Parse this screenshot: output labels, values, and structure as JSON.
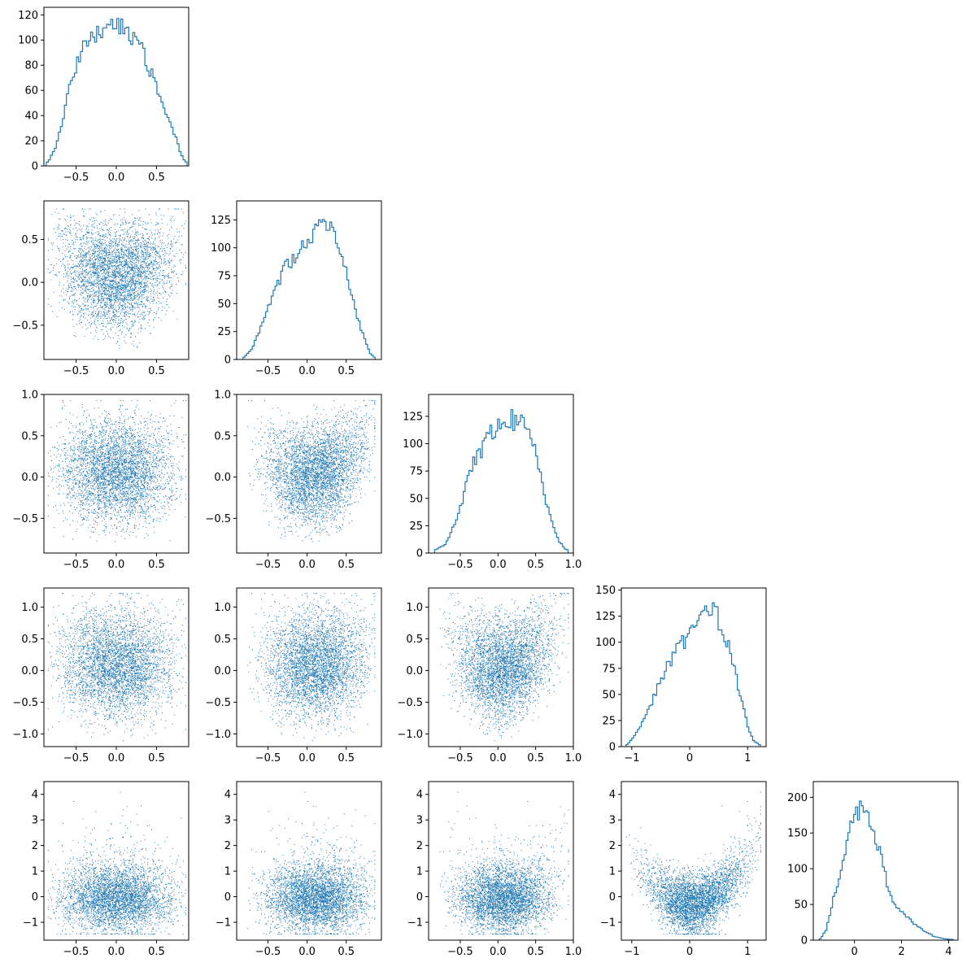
{
  "figure": {
    "type": "corner-plot",
    "variables": 5
  },
  "style": {
    "color": "#1f77b4",
    "axis_color": "#000000",
    "background": "#ffffff"
  },
  "chart_data": [
    {
      "type": "histogram",
      "row": 0,
      "col": 0,
      "xlim": [
        -0.9,
        0.9
      ],
      "ylim": [
        0,
        126
      ],
      "xticks": [
        -0.5,
        0.0,
        0.5
      ],
      "xtick_labels": [
        "−0.5",
        "0.0",
        "0.5"
      ],
      "yticks": [
        0,
        20,
        40,
        60,
        80,
        100,
        120
      ],
      "ytick_labels": [
        "0",
        "20",
        "40",
        "60",
        "80",
        "100",
        "120"
      ],
      "bins": {
        "start": -0.87,
        "end": 0.88,
        "count": 70
      },
      "profile": [
        [
          -0.85,
          3
        ],
        [
          -0.75,
          15
        ],
        [
          -0.65,
          40
        ],
        [
          -0.55,
          72
        ],
        [
          -0.45,
          88
        ],
        [
          -0.35,
          98
        ],
        [
          -0.2,
          108
        ],
        [
          -0.1,
          116
        ],
        [
          0.0,
          112
        ],
        [
          0.1,
          108
        ],
        [
          0.2,
          104
        ],
        [
          0.3,
          98
        ],
        [
          0.4,
          80
        ],
        [
          0.5,
          62
        ],
        [
          0.6,
          42
        ],
        [
          0.7,
          30
        ],
        [
          0.8,
          10
        ],
        [
          0.86,
          3
        ]
      ],
      "title": "",
      "xlabel": "",
      "ylabel": ""
    },
    {
      "type": "scatter",
      "row": 1,
      "col": 0,
      "xlim": [
        -0.9,
        0.9
      ],
      "ylim": [
        -0.9,
        0.95
      ],
      "xticks": [
        -0.5,
        0.0,
        0.5
      ],
      "xtick_labels": [
        "−0.5",
        "0.0",
        "0.5"
      ],
      "yticks": [
        -0.5,
        0.0,
        0.5
      ],
      "ytick_labels": [
        "−0.5",
        "0.0",
        "0.5"
      ],
      "x_var": 0,
      "y_var": 1,
      "points": 4000,
      "title": "",
      "xlabel": "",
      "ylabel": ""
    },
    {
      "type": "histogram",
      "row": 1,
      "col": 1,
      "xlim": [
        -0.9,
        0.95
      ],
      "ylim": [
        0,
        142
      ],
      "xticks": [
        -0.5,
        0.0,
        0.5
      ],
      "xtick_labels": [
        "−0.5",
        "0.0",
        "0.5"
      ],
      "yticks": [
        0,
        25,
        50,
        75,
        100,
        125
      ],
      "ytick_labels": [
        "0",
        "25",
        "50",
        "75",
        "100",
        "125"
      ],
      "bins": {
        "start": -0.82,
        "end": 0.87,
        "count": 70
      },
      "profile": [
        [
          -0.8,
          2
        ],
        [
          -0.7,
          10
        ],
        [
          -0.6,
          28
        ],
        [
          -0.5,
          45
        ],
        [
          -0.4,
          62
        ],
        [
          -0.3,
          80
        ],
        [
          -0.2,
          88
        ],
        [
          -0.1,
          95
        ],
        [
          0.0,
          105
        ],
        [
          0.1,
          112
        ],
        [
          0.2,
          122
        ],
        [
          0.3,
          118
        ],
        [
          0.4,
          105
        ],
        [
          0.5,
          82
        ],
        [
          0.6,
          50
        ],
        [
          0.7,
          25
        ],
        [
          0.8,
          6
        ],
        [
          0.86,
          2
        ]
      ],
      "title": "",
      "xlabel": "",
      "ylabel": ""
    },
    {
      "type": "scatter",
      "row": 2,
      "col": 0,
      "xlim": [
        -0.9,
        0.9
      ],
      "ylim": [
        -0.92,
        1.0
      ],
      "xticks": [
        -0.5,
        0.0,
        0.5
      ],
      "xtick_labels": [
        "−0.5",
        "0.0",
        "0.5"
      ],
      "yticks": [
        -0.5,
        0.0,
        0.5,
        1.0
      ],
      "ytick_labels": [
        "−0.5",
        "0.0",
        "0.5",
        "1.0"
      ],
      "x_var": 0,
      "y_var": 2,
      "points": 4000,
      "title": "",
      "xlabel": "",
      "ylabel": ""
    },
    {
      "type": "scatter",
      "row": 2,
      "col": 1,
      "xlim": [
        -0.9,
        0.95
      ],
      "ylim": [
        -0.92,
        1.0
      ],
      "xticks": [
        -0.5,
        0.0,
        0.5
      ],
      "xtick_labels": [
        "−0.5",
        "0.0",
        "0.5"
      ],
      "yticks": [
        -0.5,
        0.0,
        0.5,
        1.0
      ],
      "ytick_labels": [
        "−0.5",
        "0.0",
        "0.5",
        "1.0"
      ],
      "x_var": 1,
      "y_var": 2,
      "points": 4000,
      "title": "",
      "xlabel": "",
      "ylabel": ""
    },
    {
      "type": "histogram",
      "row": 2,
      "col": 2,
      "xlim": [
        -0.92,
        1.0
      ],
      "ylim": [
        0,
        145
      ],
      "xticks": [
        -0.5,
        0.0,
        0.5,
        1.0
      ],
      "xtick_labels": [
        "−0.5",
        "0.0",
        "0.5",
        "1.0"
      ],
      "yticks": [
        0,
        25,
        50,
        75,
        100,
        125
      ],
      "ytick_labels": [
        "0",
        "25",
        "50",
        "75",
        "100",
        "125"
      ],
      "bins": {
        "start": -0.84,
        "end": 0.93,
        "count": 70
      },
      "profile": [
        [
          -0.82,
          3
        ],
        [
          -0.7,
          8
        ],
        [
          -0.6,
          22
        ],
        [
          -0.5,
          42
        ],
        [
          -0.4,
          68
        ],
        [
          -0.3,
          85
        ],
        [
          -0.2,
          95
        ],
        [
          -0.1,
          108
        ],
        [
          0.0,
          118
        ],
        [
          0.1,
          125
        ],
        [
          0.2,
          122
        ],
        [
          0.3,
          118
        ],
        [
          0.4,
          112
        ],
        [
          0.5,
          90
        ],
        [
          0.6,
          58
        ],
        [
          0.7,
          30
        ],
        [
          0.8,
          12
        ],
        [
          0.9,
          3
        ]
      ],
      "title": "",
      "xlabel": "",
      "ylabel": ""
    },
    {
      "type": "scatter",
      "row": 3,
      "col": 0,
      "xlim": [
        -0.9,
        0.9
      ],
      "ylim": [
        -1.2,
        1.3
      ],
      "xticks": [
        -0.5,
        0.0,
        0.5
      ],
      "xtick_labels": [
        "−0.5",
        "0.0",
        "0.5"
      ],
      "yticks": [
        -1.0,
        -0.5,
        0.0,
        0.5,
        1.0
      ],
      "ytick_labels": [
        "−1.0",
        "−0.5",
        "0.0",
        "0.5",
        "1.0"
      ],
      "x_var": 0,
      "y_var": 3,
      "points": 4000,
      "title": "",
      "xlabel": "",
      "ylabel": ""
    },
    {
      "type": "scatter",
      "row": 3,
      "col": 1,
      "xlim": [
        -0.9,
        0.95
      ],
      "ylim": [
        -1.2,
        1.3
      ],
      "xticks": [
        -0.5,
        0.0,
        0.5
      ],
      "xtick_labels": [
        "−0.5",
        "0.0",
        "0.5"
      ],
      "yticks": [
        -1.0,
        -0.5,
        0.0,
        0.5,
        1.0
      ],
      "ytick_labels": [
        "−1.0",
        "−0.5",
        "0.0",
        "0.5",
        "1.0"
      ],
      "x_var": 1,
      "y_var": 3,
      "points": 4000,
      "title": "",
      "xlabel": "",
      "ylabel": ""
    },
    {
      "type": "scatter",
      "row": 3,
      "col": 2,
      "xlim": [
        -0.92,
        1.0
      ],
      "ylim": [
        -1.2,
        1.3
      ],
      "xticks": [
        -0.5,
        0.0,
        0.5,
        1.0
      ],
      "xtick_labels": [
        "−0.5",
        "0.0",
        "0.5",
        "1.0"
      ],
      "yticks": [
        -1.0,
        -0.5,
        0.0,
        0.5,
        1.0
      ],
      "ytick_labels": [
        "−1.0",
        "−0.5",
        "0.0",
        "0.5",
        "1.0"
      ],
      "x_var": 2,
      "y_var": 3,
      "points": 4000,
      "title": "",
      "xlabel": "",
      "ylabel": ""
    },
    {
      "type": "histogram",
      "row": 3,
      "col": 3,
      "xlim": [
        -1.18,
        1.32
      ],
      "ylim": [
        0,
        152
      ],
      "xticks": [
        -1,
        0,
        1
      ],
      "xtick_labels": [
        "−1",
        "0",
        "1"
      ],
      "yticks": [
        0,
        25,
        50,
        75,
        100,
        125,
        150
      ],
      "ytick_labels": [
        "0",
        "25",
        "50",
        "75",
        "100",
        "125",
        "150"
      ],
      "bins": {
        "start": -1.1,
        "end": 1.22,
        "count": 70
      },
      "profile": [
        [
          -1.08,
          2
        ],
        [
          -0.95,
          10
        ],
        [
          -0.8,
          25
        ],
        [
          -0.6,
          50
        ],
        [
          -0.4,
          75
        ],
        [
          -0.2,
          95
        ],
        [
          0.0,
          108
        ],
        [
          0.2,
          122
        ],
        [
          0.35,
          135
        ],
        [
          0.5,
          122
        ],
        [
          0.7,
          95
        ],
        [
          0.85,
          55
        ],
        [
          1.0,
          20
        ],
        [
          1.1,
          6
        ],
        [
          1.2,
          2
        ]
      ],
      "title": "",
      "xlabel": "",
      "ylabel": ""
    },
    {
      "type": "scatter",
      "row": 4,
      "col": 0,
      "xlim": [
        -0.9,
        0.9
      ],
      "ylim": [
        -1.7,
        4.5
      ],
      "xticks": [
        -0.5,
        0.0,
        0.5
      ],
      "xtick_labels": [
        "−0.5",
        "0.0",
        "0.5"
      ],
      "yticks": [
        -1,
        0,
        1,
        2,
        3,
        4
      ],
      "ytick_labels": [
        "−1",
        "0",
        "1",
        "2",
        "3",
        "4"
      ],
      "x_var": 0,
      "y_var": 4,
      "points": 4000,
      "title": "",
      "xlabel": "",
      "ylabel": ""
    },
    {
      "type": "scatter",
      "row": 4,
      "col": 1,
      "xlim": [
        -0.9,
        0.95
      ],
      "ylim": [
        -1.7,
        4.5
      ],
      "xticks": [
        -0.5,
        0.0,
        0.5
      ],
      "xtick_labels": [
        "−0.5",
        "0.0",
        "0.5"
      ],
      "yticks": [
        -1,
        0,
        1,
        2,
        3,
        4
      ],
      "ytick_labels": [
        "−1",
        "0",
        "1",
        "2",
        "3",
        "4"
      ],
      "x_var": 1,
      "y_var": 4,
      "points": 4000,
      "title": "",
      "xlabel": "",
      "ylabel": ""
    },
    {
      "type": "scatter",
      "row": 4,
      "col": 2,
      "xlim": [
        -0.92,
        1.0
      ],
      "ylim": [
        -1.7,
        4.5
      ],
      "xticks": [
        -0.5,
        0.0,
        0.5,
        1.0
      ],
      "xtick_labels": [
        "−0.5",
        "0.0",
        "0.5",
        "1.0"
      ],
      "yticks": [
        -1,
        0,
        1,
        2,
        3,
        4
      ],
      "ytick_labels": [
        "−1",
        "0",
        "1",
        "2",
        "3",
        "4"
      ],
      "x_var": 2,
      "y_var": 4,
      "points": 4000,
      "title": "",
      "xlabel": "",
      "ylabel": ""
    },
    {
      "type": "scatter",
      "row": 4,
      "col": 3,
      "xlim": [
        -1.18,
        1.32
      ],
      "ylim": [
        -1.7,
        4.5
      ],
      "xticks": [
        -1,
        0,
        1
      ],
      "xtick_labels": [
        "−1",
        "0",
        "1"
      ],
      "yticks": [
        -1,
        0,
        1,
        2,
        3,
        4
      ],
      "ytick_labels": [
        "−1",
        "0",
        "1",
        "2",
        "3",
        "4"
      ],
      "x_var": 3,
      "y_var": 4,
      "points": 4000,
      "title": "",
      "xlabel": "",
      "ylabel": ""
    },
    {
      "type": "histogram",
      "row": 4,
      "col": 4,
      "xlim": [
        -1.75,
        4.4
      ],
      "ylim": [
        0,
        222
      ],
      "xticks": [
        0,
        2,
        4
      ],
      "xtick_labels": [
        "0",
        "2",
        "4"
      ],
      "yticks": [
        0,
        50,
        100,
        150,
        200
      ],
      "ytick_labels": [
        "0",
        "50",
        "100",
        "150",
        "200"
      ],
      "bins": {
        "start": -1.5,
        "end": 4.2,
        "count": 70
      },
      "profile": [
        [
          -1.45,
          2
        ],
        [
          -1.2,
          15
        ],
        [
          -1.0,
          40
        ],
        [
          -0.8,
          70
        ],
        [
          -0.6,
          95
        ],
        [
          -0.4,
          125
        ],
        [
          -0.2,
          160
        ],
        [
          0.0,
          172
        ],
        [
          0.2,
          180
        ],
        [
          0.35,
          192
        ],
        [
          0.5,
          182
        ],
        [
          0.7,
          162
        ],
        [
          1.0,
          132
        ],
        [
          1.2,
          105
        ],
        [
          1.4,
          78
        ],
        [
          1.6,
          60
        ],
        [
          1.8,
          48
        ],
        [
          2.0,
          38
        ],
        [
          2.3,
          30
        ],
        [
          2.6,
          22
        ],
        [
          3.0,
          12
        ],
        [
          3.4,
          5
        ],
        [
          3.8,
          2
        ],
        [
          4.1,
          1
        ]
      ],
      "title": "",
      "xlabel": "",
      "ylabel": ""
    }
  ]
}
